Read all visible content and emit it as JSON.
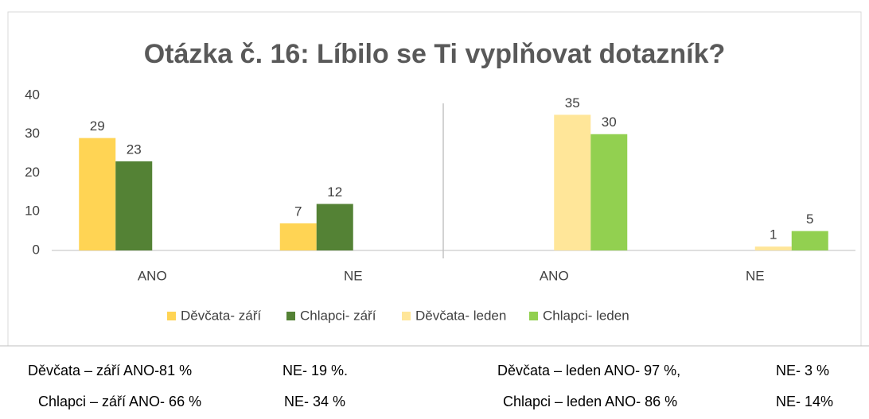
{
  "chart_data": {
    "type": "bar",
    "title": "Otázka č. 16: Líbilo se Ti vyplňovat dotazník?",
    "categories": [
      "ANO",
      "NE",
      "ANO",
      "NE"
    ],
    "series": [
      {
        "name": "Děvčata- září",
        "color": "#ffd454",
        "values": [
          29,
          7,
          null,
          null
        ]
      },
      {
        "name": "Chlapci- září",
        "color": "#548235",
        "values": [
          23,
          12,
          null,
          null
        ]
      },
      {
        "name": "Děvčata- leden",
        "color": "#ffe699",
        "values": [
          null,
          null,
          35,
          1
        ]
      },
      {
        "name": "Chlapci- leden",
        "color": "#92d050",
        "values": [
          null,
          null,
          30,
          5
        ]
      }
    ],
    "ylim": [
      0,
      40
    ],
    "yticks": [
      0,
      10,
      20,
      30,
      40
    ],
    "grid": false,
    "legend": "bottom"
  },
  "table": {
    "rows": [
      [
        "Děvčata  –  září ANO-81 %",
        "NE- 19 %.",
        "Děvčata –  leden ANO- 97 %,",
        "NE- 3 %"
      ],
      [
        "Chlapci – září ANO- 66 %",
        "NE- 34 %",
        "Chlapci – leden ANO- 86 %",
        "NE- 14%"
      ]
    ]
  }
}
